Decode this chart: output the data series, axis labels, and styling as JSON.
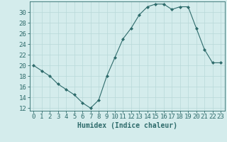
{
  "x": [
    0,
    1,
    2,
    3,
    4,
    5,
    6,
    7,
    8,
    9,
    10,
    11,
    12,
    13,
    14,
    15,
    16,
    17,
    18,
    19,
    20,
    21,
    22,
    23
  ],
  "y": [
    20,
    19,
    18,
    16.5,
    15.5,
    14.5,
    13,
    12,
    13.5,
    18,
    21.5,
    25,
    27,
    29.5,
    31,
    31.5,
    31.5,
    30.5,
    31,
    31,
    27,
    23,
    20.5,
    20.5
  ],
  "line_color": "#2e6b6b",
  "marker": "D",
  "marker_size": 2,
  "bg_color": "#d4ecec",
  "grid_color": "#b8d8d8",
  "ylabel_ticks": [
    12,
    14,
    16,
    18,
    20,
    22,
    24,
    26,
    28,
    30
  ],
  "ylim": [
    11.5,
    32.0
  ],
  "xlim": [
    -0.5,
    23.5
  ],
  "xlabel": "Humidex (Indice chaleur)",
  "xlabel_fontsize": 7,
  "tick_fontsize": 6.5,
  "title": ""
}
